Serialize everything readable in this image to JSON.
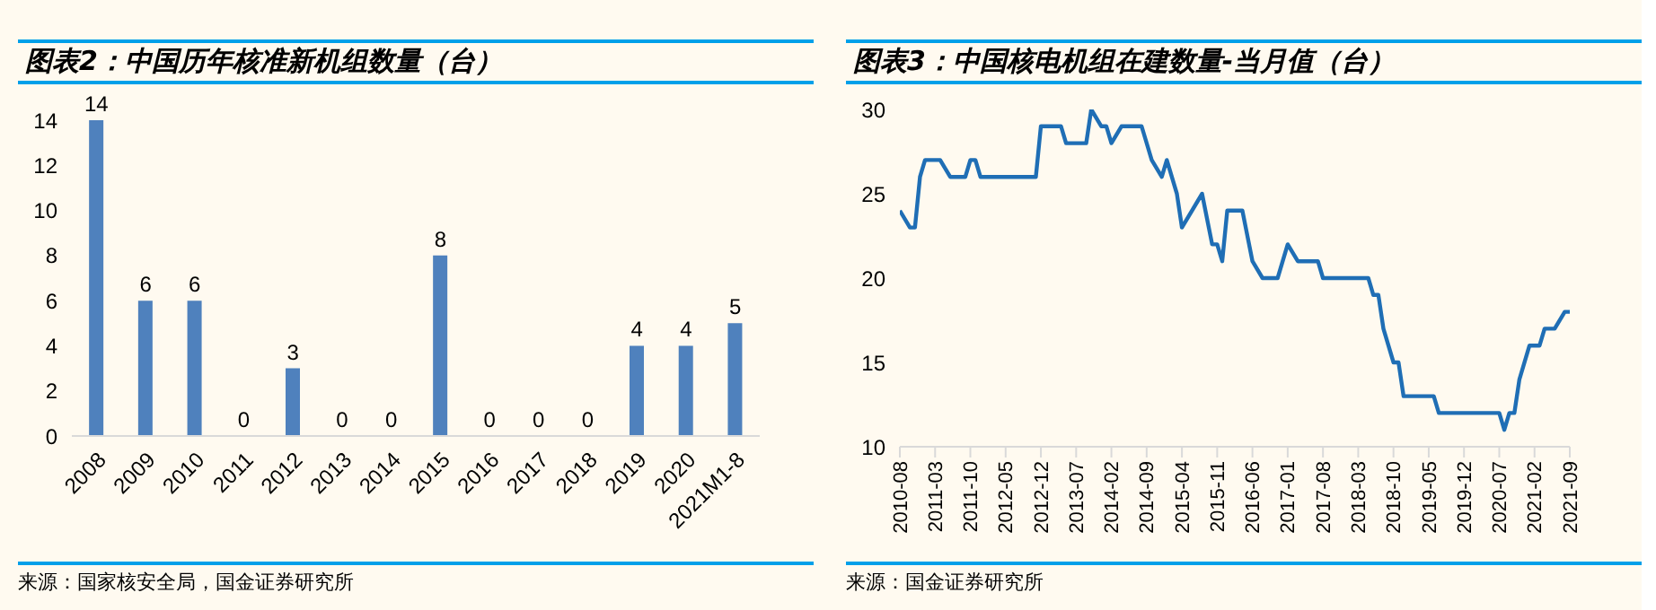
{
  "chart_data": [
    {
      "type": "bar",
      "title": "图表2：中国历年核准新机组数量（台）",
      "categories": [
        "2008",
        "2009",
        "2010",
        "2011",
        "2012",
        "2013",
        "2014",
        "2015",
        "2016",
        "2017",
        "2018",
        "2019",
        "2020",
        "2021M1-8"
      ],
      "values": [
        14,
        6,
        6,
        0,
        3,
        0,
        0,
        8,
        0,
        0,
        0,
        4,
        4,
        5
      ],
      "color": "#4f81bd",
      "ylim": [
        0,
        14
      ],
      "yticks": [
        0,
        2,
        4,
        6,
        8,
        10,
        12,
        14
      ],
      "grid": false,
      "data_labels": true,
      "annotations": [
        "来源：国家核安全局，国金证券研究所"
      ]
    },
    {
      "type": "line",
      "title": "图表3：中国核电机组在建数量-当月值（台）",
      "x": [
        "2010-08",
        "2010-10",
        "2010-11",
        "2010-12",
        "2011-01",
        "2011-04",
        "2011-06",
        "2011-09",
        "2011-10",
        "2011-11",
        "2011-12",
        "2012-11",
        "2012-12",
        "2013-04",
        "2013-05",
        "2013-09",
        "2013-10",
        "2013-12",
        "2014-01",
        "2014-02",
        "2014-04",
        "2014-08",
        "2014-10",
        "2014-12",
        "2015-01",
        "2015-03",
        "2015-04",
        "2015-08",
        "2015-10",
        "2015-11",
        "2015-12",
        "2016-01",
        "2016-04",
        "2016-06",
        "2016-08",
        "2016-11",
        "2017-01",
        "2017-03",
        "2017-07",
        "2017-08",
        "2018-05",
        "2018-06",
        "2018-07",
        "2018-08",
        "2018-10",
        "2018-11",
        "2018-12",
        "2019-06",
        "2019-07",
        "2020-07",
        "2020-08",
        "2020-09",
        "2020-10",
        "2020-11",
        "2021-01",
        "2021-03",
        "2021-04",
        "2021-06",
        "2021-08",
        "2021-09"
      ],
      "series": [
        {
          "color": "#1f6eb5",
          "values": [
            24,
            23,
            23,
            26,
            27,
            27,
            26,
            26,
            27,
            27,
            26,
            26,
            29,
            29,
            28,
            28,
            30,
            29,
            29,
            28,
            29,
            29,
            27,
            26,
            27,
            25,
            23,
            25,
            22,
            22,
            21,
            24,
            24,
            21,
            20,
            20,
            22,
            21,
            21,
            20,
            20,
            19,
            19,
            17,
            15,
            15,
            13,
            13,
            12,
            12,
            11,
            12,
            12,
            14,
            16,
            16,
            17,
            17,
            18,
            18
          ]
        }
      ],
      "xlim": [
        "2010-08",
        "2021-09"
      ],
      "xticks": [
        "2010-08",
        "2011-03",
        "2011-10",
        "2012-05",
        "2012-12",
        "2013-07",
        "2014-02",
        "2014-09",
        "2015-04",
        "2015-11",
        "2016-06",
        "2017-01",
        "2017-08",
        "2018-03",
        "2018-10",
        "2019-05",
        "2019-12",
        "2020-07",
        "2021-02",
        "2021-09"
      ],
      "ylim": [
        10,
        30
      ],
      "yticks": [
        10,
        15,
        20,
        25,
        30
      ],
      "grid": false,
      "marker": "none",
      "line_style": "solid",
      "annotations": [
        "来源：国金证券研究所"
      ]
    }
  ]
}
